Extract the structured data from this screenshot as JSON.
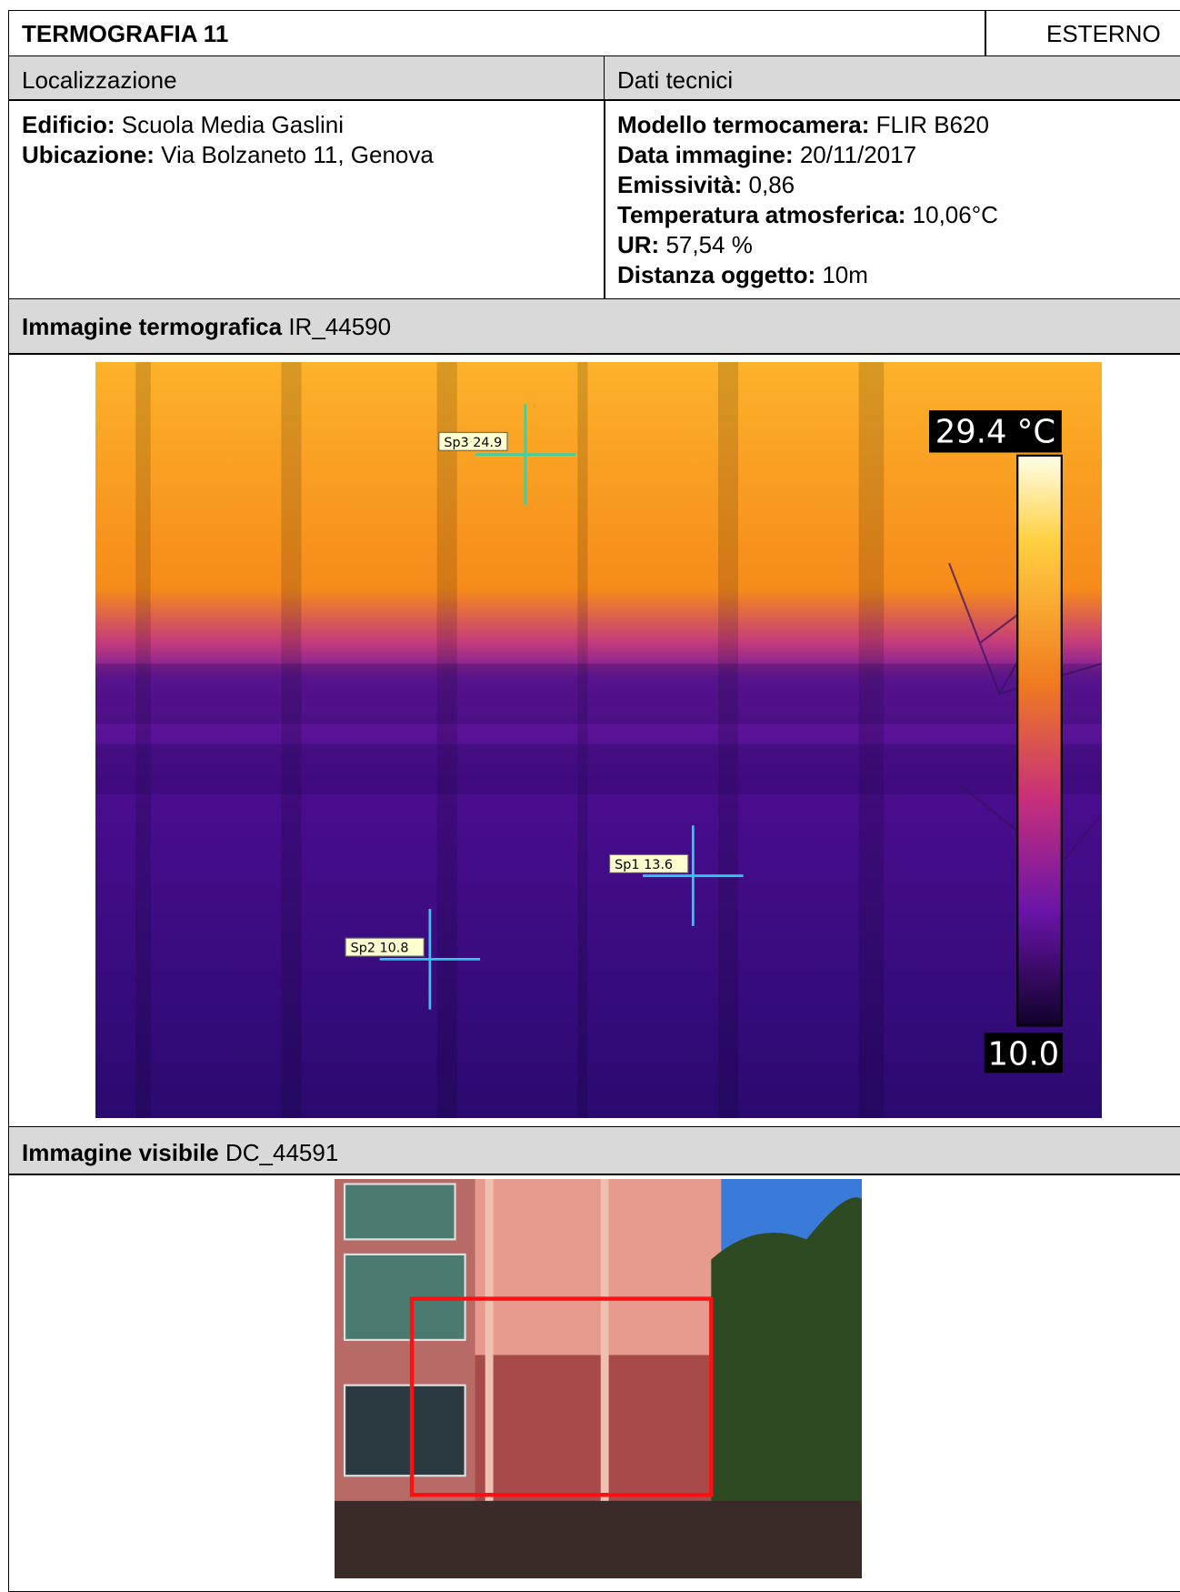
{
  "header": {
    "title": "TERMOGRAFIA 11",
    "type": "ESTERNO"
  },
  "sections": {
    "location_title": "Localizzazione",
    "technical_title": "Dati tecnici"
  },
  "location": [
    {
      "label": "Edificio:",
      "value": "Scuola Media Gaslini"
    },
    {
      "label": "Ubicazione:",
      "value": "Via Bolzaneto 11, Genova"
    }
  ],
  "technical": [
    {
      "label": "Modello termocamera:",
      "value": "FLIR B620"
    },
    {
      "label": "Data immagine:",
      "value": "20/11/2017"
    },
    {
      "label": "Emissività:",
      "value": "0,86"
    },
    {
      "label": "Temperatura atmosferica:",
      "value": "10,06°C"
    },
    {
      "label": "UR:",
      "value": "57,54 %"
    },
    {
      "label": "Distanza oggetto:",
      "value": "10m"
    }
  ],
  "thermal_image": {
    "label": "Immagine termografica",
    "id": "IR_44590",
    "scale_max": "29.4 °C",
    "scale_min": "10.0",
    "spots": [
      "Sp3 24.9",
      "Sp1 13.6",
      "Sp2 10.8"
    ]
  },
  "visible_image": {
    "label": "Immagine visibile",
    "id": "DC_44591"
  }
}
